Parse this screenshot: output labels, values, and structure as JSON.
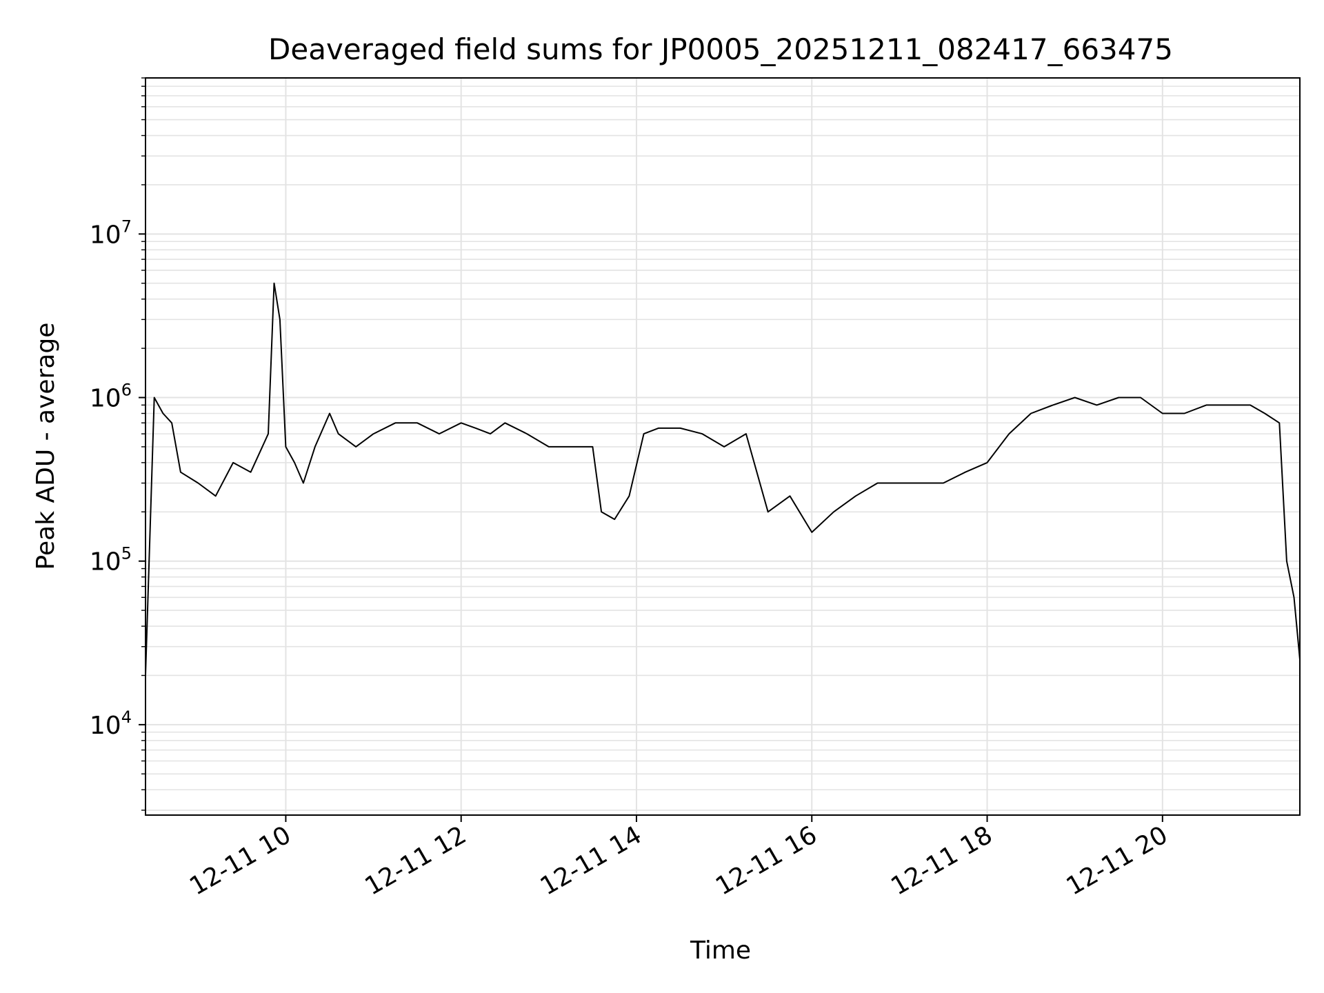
{
  "chart_data": {
    "type": "line",
    "title": "Deaveraged field sums for JP0005_20251211_082417_663475",
    "xlabel": "Time",
    "ylabel": "Peak ADU - average",
    "yscale": "log",
    "xlim": [
      "12-11 08:24",
      "12-11 21:34"
    ],
    "ylim": [
      2800,
      90000000
    ],
    "x_ticks": [
      {
        "value": "12-11 10:00",
        "label": "12-11 10"
      },
      {
        "value": "12-11 12:00",
        "label": "12-11 12"
      },
      {
        "value": "12-11 14:00",
        "label": "12-11 14"
      },
      {
        "value": "12-11 16:00",
        "label": "12-11 16"
      },
      {
        "value": "12-11 18:00",
        "label": "12-11 18"
      },
      {
        "value": "12-11 20:00",
        "label": "12-11 20"
      }
    ],
    "y_ticks": [
      {
        "value": 10000,
        "base": "10",
        "exp": "4"
      },
      {
        "value": 100000,
        "base": "10",
        "exp": "5"
      },
      {
        "value": 1000000,
        "base": "10",
        "exp": "6"
      },
      {
        "value": 10000000,
        "base": "10",
        "exp": "7"
      }
    ],
    "grid": true,
    "line_color": "#000000",
    "grid_color": "#e3e3e3",
    "series": [
      {
        "x": [
          "12-11 08:24",
          "12-11 08:30",
          "12-11 08:36",
          "12-11 08:42",
          "12-11 08:48",
          "12-11 09:00",
          "12-11 09:12",
          "12-11 09:24",
          "12-11 09:36",
          "12-11 09:48",
          "12-11 09:52",
          "12-11 09:56",
          "12-11 10:00",
          "12-11 10:06",
          "12-11 10:12",
          "12-11 10:20",
          "12-11 10:30",
          "12-11 10:36",
          "12-11 10:48",
          "12-11 11:00",
          "12-11 11:15",
          "12-11 11:30",
          "12-11 11:45",
          "12-11 12:00",
          "12-11 12:10",
          "12-11 12:20",
          "12-11 12:30",
          "12-11 12:45",
          "12-11 13:00",
          "12-11 13:15",
          "12-11 13:30",
          "12-11 13:36",
          "12-11 13:45",
          "12-11 13:55",
          "12-11 14:05",
          "12-11 14:15",
          "12-11 14:30",
          "12-11 14:45",
          "12-11 15:00",
          "12-11 15:15",
          "12-11 15:30",
          "12-11 15:45",
          "12-11 16:00",
          "12-11 16:15",
          "12-11 16:30",
          "12-11 16:45",
          "12-11 17:00",
          "12-11 17:15",
          "12-11 17:30",
          "12-11 17:45",
          "12-11 18:00",
          "12-11 18:15",
          "12-11 18:30",
          "12-11 18:45",
          "12-11 19:00",
          "12-11 19:15",
          "12-11 19:30",
          "12-11 19:45",
          "12-11 20:00",
          "12-11 20:15",
          "12-11 20:30",
          "12-11 20:45",
          "12-11 21:00",
          "12-11 21:10",
          "12-11 21:20",
          "12-11 21:25",
          "12-11 21:30",
          "12-11 21:34"
        ],
        "y": [
          20000,
          1000000,
          800000,
          700000,
          350000,
          300000,
          250000,
          400000,
          350000,
          600000,
          5000000,
          3000000,
          500000,
          400000,
          300000,
          500000,
          800000,
          600000,
          500000,
          600000,
          700000,
          700000,
          600000,
          700000,
          650000,
          600000,
          700000,
          600000,
          500000,
          500000,
          500000,
          200000,
          180000,
          250000,
          600000,
          650000,
          650000,
          600000,
          500000,
          600000,
          200000,
          250000,
          150000,
          200000,
          250000,
          300000,
          300000,
          300000,
          300000,
          350000,
          400000,
          600000,
          800000,
          900000,
          1000000,
          900000,
          1000000,
          1000000,
          800000,
          800000,
          900000,
          900000,
          900000,
          800000,
          700000,
          100000,
          60000,
          25000
        ]
      }
    ]
  }
}
